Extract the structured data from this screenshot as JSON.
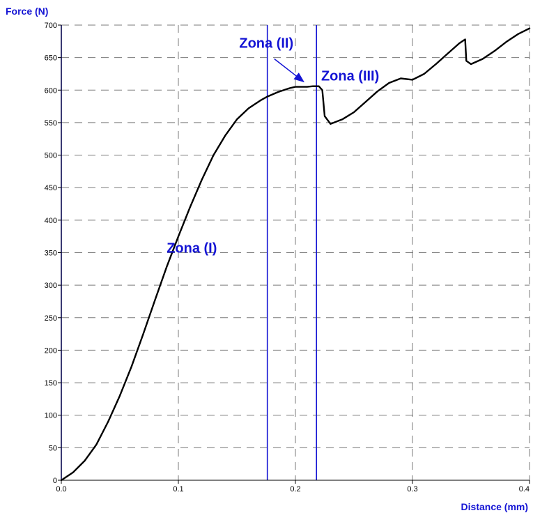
{
  "chart_data": {
    "type": "line",
    "title": "",
    "xlabel": "Distance (mm)",
    "ylabel": "Force (N)",
    "xlim": [
      0,
      0.4
    ],
    "ylim": [
      0,
      700
    ],
    "x_ticks": [
      "0.0",
      "0.1",
      "0.2",
      "0.3",
      "0.4"
    ],
    "x_tick_values": [
      0,
      0.1,
      0.2,
      0.3,
      0.4
    ],
    "y_ticks": [
      "0",
      "50",
      "100",
      "150",
      "200",
      "250",
      "300",
      "350",
      "400",
      "450",
      "500",
      "550",
      "600",
      "650",
      "700"
    ],
    "y_tick_values": [
      0,
      50,
      100,
      150,
      200,
      250,
      300,
      350,
      400,
      450,
      500,
      550,
      600,
      650,
      700
    ],
    "grid": true,
    "zone_boundaries_x": [
      0.0,
      0.176,
      0.218
    ],
    "annotations": [
      {
        "text": "Zona (I)",
        "x": 0.09,
        "y": 350
      },
      {
        "text": "Zona (II)",
        "x": 0.152,
        "y": 665
      },
      {
        "text": "Zona (III)",
        "x": 0.222,
        "y": 615
      }
    ],
    "arrow": {
      "from": [
        0.182,
        648
      ],
      "to": [
        0.207,
        613
      ]
    },
    "series": [
      {
        "x": [
          0.0,
          0.01,
          0.02,
          0.03,
          0.04,
          0.05,
          0.06,
          0.07,
          0.08,
          0.09,
          0.1,
          0.11,
          0.12,
          0.13,
          0.14,
          0.15,
          0.16,
          0.17,
          0.176,
          0.185,
          0.195,
          0.2,
          0.205,
          0.21,
          0.215,
          0.22,
          0.223,
          0.225,
          0.23,
          0.24,
          0.25,
          0.26,
          0.27,
          0.28,
          0.29,
          0.3,
          0.31,
          0.32,
          0.33,
          0.34,
          0.345,
          0.346,
          0.35,
          0.36,
          0.37,
          0.38,
          0.39,
          0.4
        ],
        "y": [
          0,
          12,
          30,
          55,
          90,
          130,
          175,
          225,
          277,
          328,
          375,
          420,
          462,
          500,
          530,
          555,
          572,
          584,
          590,
          597,
          603,
          605,
          605,
          605,
          606,
          606,
          600,
          560,
          548,
          555,
          566,
          582,
          598,
          611,
          618,
          616,
          625,
          640,
          656,
          672,
          678,
          645,
          640,
          648,
          660,
          674,
          686,
          695
        ]
      }
    ]
  },
  "colors": {
    "curve": "#000000",
    "zone_lines": "#1414d4",
    "labels": "#1414d4",
    "grid": "#7a7a7a",
    "axes": "#000000"
  }
}
